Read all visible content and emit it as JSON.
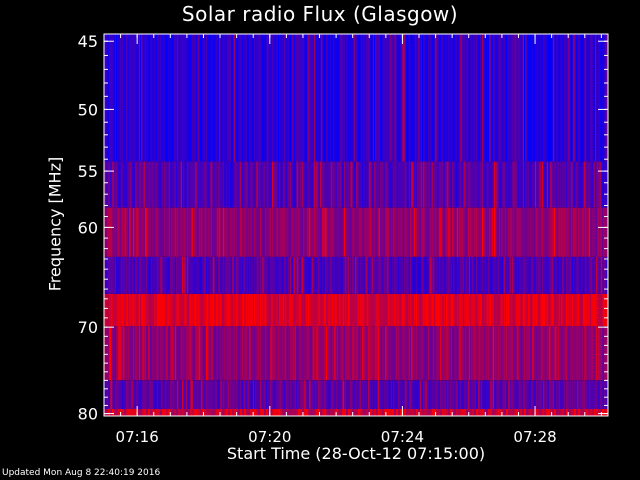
{
  "chart_data": {
    "type": "heatmap",
    "title": "Solar radio Flux (Glasgow)",
    "xlabel": "Start Time (28-Oct-12 07:15:00)",
    "ylabel": "Frequency [MHz]",
    "x_tick_labels": [
      "07:16",
      "07:20",
      "07:24",
      "07:28"
    ],
    "x_tick_minutes": [
      1,
      5,
      9,
      13
    ],
    "x_range_minutes": [
      0,
      15.2
    ],
    "y_tick_labels": [
      "45",
      "50",
      "55",
      "60",
      "70",
      "80"
    ],
    "y_ticks_mhz": [
      45,
      50,
      55,
      60,
      70,
      80
    ],
    "y_range_mhz": [
      44.5,
      80.3
    ],
    "y_scale": "log",
    "bands_mhz": [
      {
        "from": 44.5,
        "to": 54.2,
        "level": 0.15
      },
      {
        "from": 54.2,
        "to": 58.2,
        "level": 0.3
      },
      {
        "from": 58.2,
        "to": 62.8,
        "level": 0.55
      },
      {
        "from": 62.8,
        "to": 66.5,
        "level": 0.3
      },
      {
        "from": 66.5,
        "to": 69.9,
        "level": 0.85
      },
      {
        "from": 69.9,
        "to": 76.0,
        "level": 0.55
      },
      {
        "from": 76.0,
        "to": 80.3,
        "level": 0.35
      }
    ],
    "colors": {
      "low": "#0000ff",
      "high": "#ff0000",
      "background": "#000000",
      "axes": "#ffffff"
    }
  },
  "footer": "Updated Mon Aug  8 22:40:19 2016"
}
